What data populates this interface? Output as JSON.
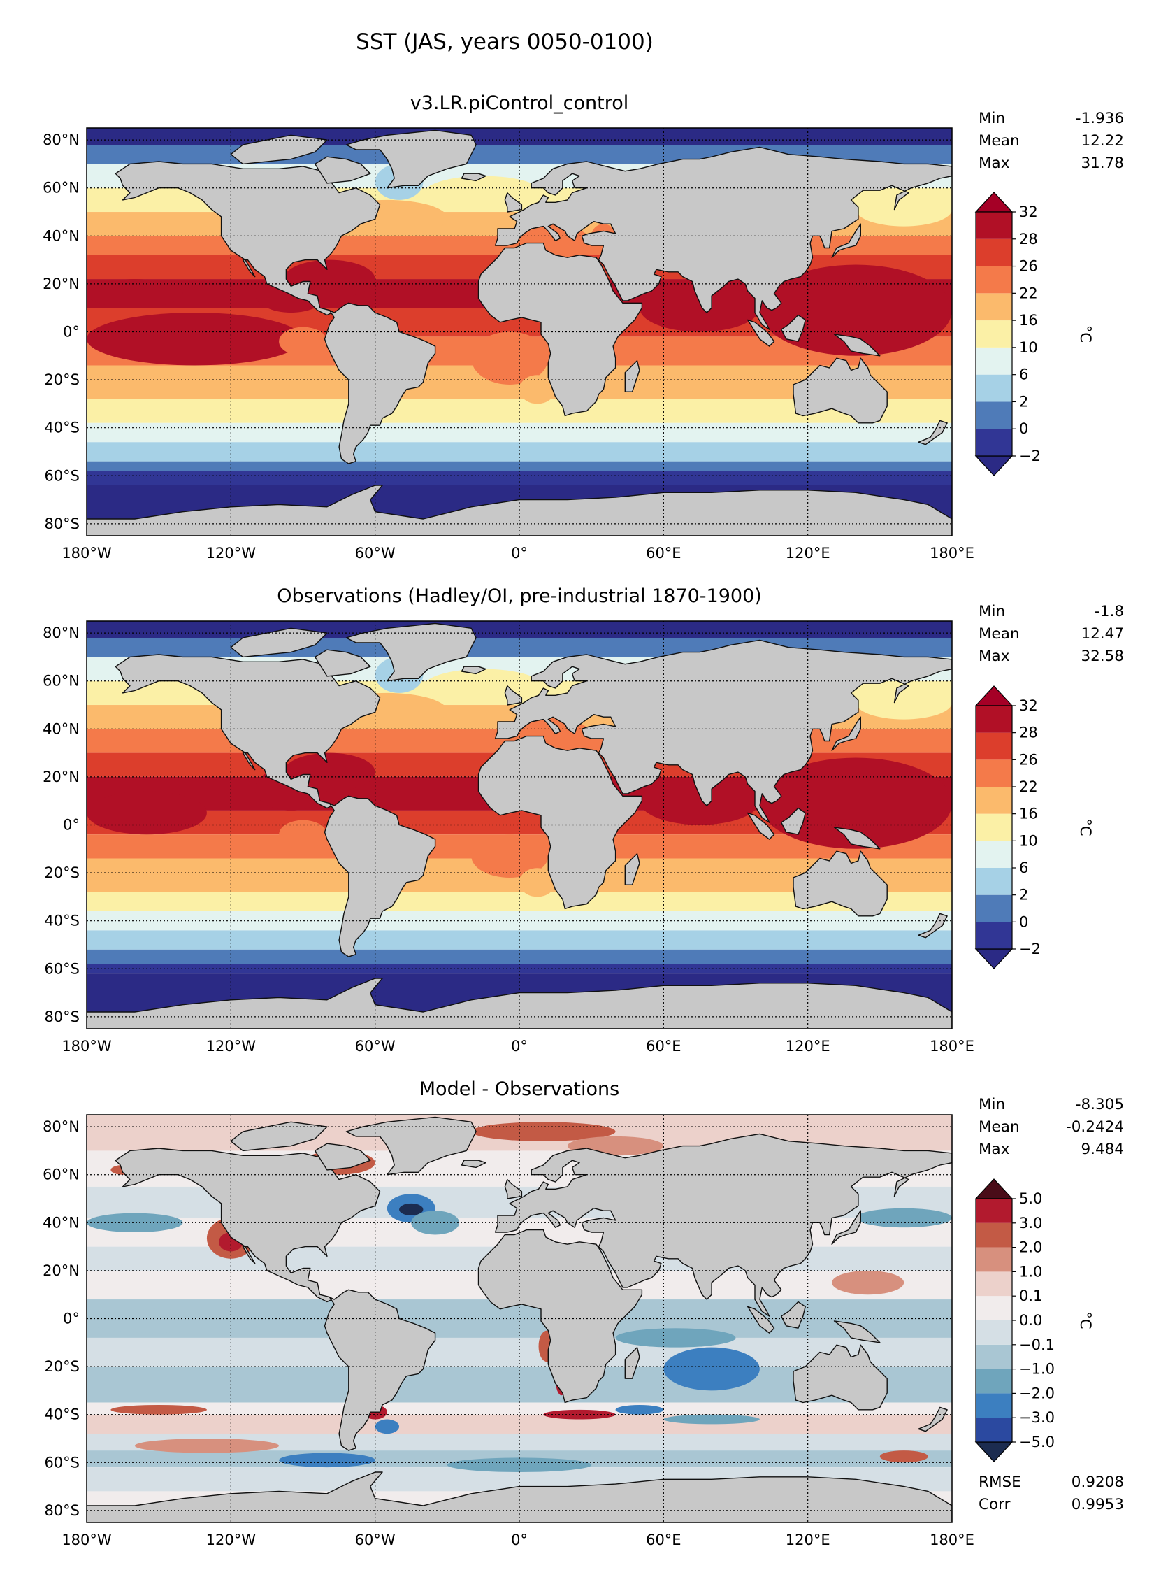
{
  "figure_title": "SST (JAS, years 0050-0100)",
  "panels": [
    {
      "id": "model",
      "title": "v3.LR.piControl_control",
      "stats": [
        {
          "label": "Min",
          "value": "-1.936"
        },
        {
          "label": "Mean",
          "value": "12.22"
        },
        {
          "label": "Max",
          "value": "31.78"
        }
      ],
      "colorbar": {
        "unit": "°C",
        "levels": [
          "−2",
          "0",
          "2",
          "6",
          "10",
          "16",
          "22",
          "26",
          "28",
          "32"
        ],
        "colors": [
          "#313695",
          "#4f7bb8",
          "#a6d1e6",
          "#e3f3f0",
          "#fbf0a6",
          "#fbba6c",
          "#f47a4a",
          "#dc3e2c",
          "#b11026"
        ],
        "extend_low": "#2b2a85",
        "extend_high": "#a50026"
      },
      "extra_stats": []
    },
    {
      "id": "obs",
      "title": "Observations (Hadley/OI, pre-industrial 1870-1900)",
      "stats": [
        {
          "label": "Min",
          "value": "-1.8"
        },
        {
          "label": "Mean",
          "value": "12.47"
        },
        {
          "label": "Max",
          "value": "32.58"
        }
      ],
      "colorbar": {
        "unit": "°C",
        "levels": [
          "−2",
          "0",
          "2",
          "6",
          "10",
          "16",
          "22",
          "26",
          "28",
          "32"
        ],
        "colors": [
          "#313695",
          "#4f7bb8",
          "#a6d1e6",
          "#e3f3f0",
          "#fbf0a6",
          "#fbba6c",
          "#f47a4a",
          "#dc3e2c",
          "#b11026"
        ],
        "extend_low": "#2b2a85",
        "extend_high": "#a50026"
      },
      "extra_stats": []
    },
    {
      "id": "diff",
      "title": "Model - Observations",
      "stats": [
        {
          "label": "Min",
          "value": "-8.305"
        },
        {
          "label": "Mean",
          "value": "-0.2424"
        },
        {
          "label": "Max",
          "value": "9.484"
        }
      ],
      "colorbar": {
        "unit": "°C",
        "levels": [
          "−5.0",
          "−3.0",
          "−2.0",
          "−1.0",
          "−0.1",
          "0.0",
          "0.1",
          "1.0",
          "2.0",
          "3.0",
          "5.0"
        ],
        "colors": [
          "#2b49a0",
          "#3c7fc0",
          "#6fa5bc",
          "#a9c6d3",
          "#d5dfe5",
          "#f1ecec",
          "#ecd1cb",
          "#d7907e",
          "#c35a45",
          "#b21a2e"
        ],
        "extend_low": "#1c2c50",
        "extend_high": "#4a0c18"
      },
      "extra_stats": [
        {
          "label": "RMSE",
          "value": "0.9208"
        },
        {
          "label": "Corr",
          "value": "0.9953"
        }
      ]
    }
  ],
  "axes": {
    "lon_ticks": [
      "180°W",
      "120°W",
      "60°W",
      "0°",
      "60°E",
      "120°E",
      "180°E"
    ],
    "lat_ticks": [
      "80°N",
      "60°N",
      "40°N",
      "20°N",
      "0°",
      "20°S",
      "40°S",
      "60°S",
      "80°S"
    ]
  },
  "chart_data": [
    {
      "type": "heatmap",
      "title": "v3.LR.piControl_control",
      "variable": "SST",
      "unit": "°C",
      "x_range": [
        -180,
        180
      ],
      "y_range": [
        -85,
        85
      ],
      "grid": true,
      "contour_levels": [
        -2,
        0,
        2,
        6,
        10,
        16,
        22,
        26,
        28,
        32
      ],
      "zonal_mean_profile": {
        "lat": [
          85,
          70,
          60,
          50,
          40,
          30,
          20,
          10,
          0,
          -10,
          -20,
          -30,
          -40,
          -50,
          -60,
          -70,
          -85
        ],
        "value": [
          -1.5,
          4,
          8,
          13,
          18,
          24,
          27,
          28,
          27,
          25,
          22,
          18,
          12,
          5,
          -1,
          -1.8,
          -1.9
        ]
      },
      "min": -1.936,
      "mean": 12.22,
      "max": 31.78
    },
    {
      "type": "heatmap",
      "title": "Observations (Hadley/OI, pre-industrial 1870-1900)",
      "variable": "SST",
      "unit": "°C",
      "x_range": [
        -180,
        180
      ],
      "y_range": [
        -85,
        85
      ],
      "grid": true,
      "contour_levels": [
        -2,
        0,
        2,
        6,
        10,
        16,
        22,
        26,
        28,
        32
      ],
      "zonal_mean_profile": {
        "lat": [
          85,
          70,
          60,
          50,
          40,
          30,
          20,
          10,
          0,
          -10,
          -20,
          -30,
          -40,
          -50,
          -60,
          -70,
          -85
        ],
        "value": [
          -1.5,
          4,
          9,
          14,
          19,
          25,
          28,
          29,
          27,
          25,
          22,
          17,
          11,
          4,
          -0.5,
          -1.7,
          -1.8
        ]
      },
      "min": -1.8,
      "mean": 12.47,
      "max": 32.58
    },
    {
      "type": "heatmap",
      "title": "Model - Observations",
      "variable": "SST difference",
      "unit": "°C",
      "x_range": [
        -180,
        180
      ],
      "y_range": [
        -85,
        85
      ],
      "grid": true,
      "contour_levels": [
        -5.0,
        -3.0,
        -2.0,
        -1.0,
        -0.1,
        0.0,
        0.1,
        1.0,
        2.0,
        3.0,
        5.0
      ],
      "min": -8.305,
      "mean": -0.2424,
      "max": 9.484,
      "rmse": 0.9208,
      "corr": 0.9953
    }
  ]
}
